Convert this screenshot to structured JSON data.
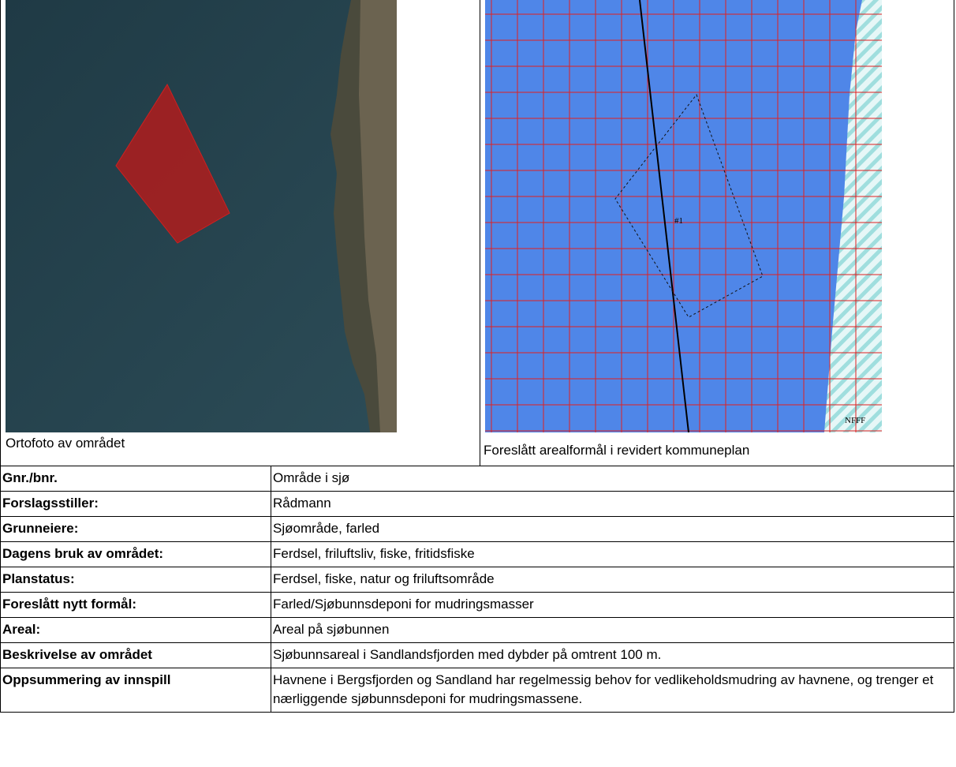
{
  "images": {
    "left_caption": "Ortofoto av området",
    "right_caption": "Foreslått arealformål i revidert kommuneplan",
    "map_labels": [
      "#1",
      "NFFF"
    ]
  },
  "table": {
    "rows": [
      [
        "Gnr./bnr.",
        "Område i sjø"
      ],
      [
        "Forslagsstiller:",
        "Rådmann"
      ],
      [
        "Grunneiere:",
        "Sjøområde, farled"
      ],
      [
        "Dagens bruk av området:",
        "Ferdsel, friluftsliv, fiske, fritidsfiske"
      ],
      [
        "Planstatus:",
        "Ferdsel, fiske, natur og friluftsområde"
      ],
      [
        "Foreslått nytt formål:",
        "Farled/Sjøbunnsdeponi for mudringsmasser"
      ],
      [
        "Areal:",
        " Areal på sjøbunnen"
      ],
      [
        "Beskrivelse av området",
        "Sjøbunnsareal i Sandlandsfjorden med dybder på omtrent 100 m."
      ],
      [
        "Oppsummering av innspill",
        "Havnene i Bergsfjorden og Sandland har regelmessig behov for vedlikeholdsmudring av havnene, og trenger et nærliggende sjøbunnsdeponi for mudringsmassene."
      ]
    ]
  }
}
